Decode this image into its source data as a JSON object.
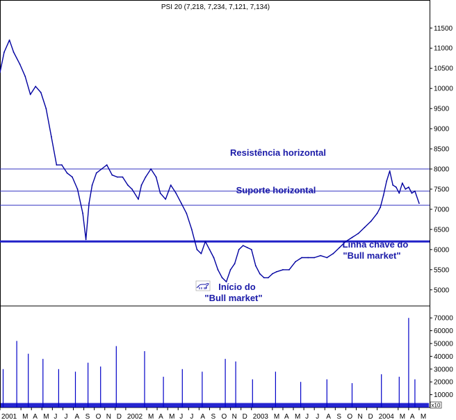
{
  "chart_data": {
    "type": "line",
    "title": "PSI 20 (7,218, 7,234, 7,121, 7,134)",
    "price_axis": {
      "ylim": [
        4600,
        11850
      ],
      "ticks": [
        5000,
        5500,
        6000,
        6500,
        7000,
        7500,
        8000,
        8500,
        9000,
        9500,
        10000,
        10500,
        11000,
        11500
      ]
    },
    "volume_axis": {
      "ylim": [
        0,
        75000
      ],
      "ticks": [
        10000,
        20000,
        30000,
        40000,
        50000,
        60000,
        70000
      ],
      "unit": "x10"
    },
    "x_ticks": [
      {
        "label": "2001",
        "t": 0
      },
      {
        "label": "M",
        "t": 2
      },
      {
        "label": "A",
        "t": 3
      },
      {
        "label": "M",
        "t": 4
      },
      {
        "label": "J",
        "t": 5
      },
      {
        "label": "J",
        "t": 6
      },
      {
        "label": "A",
        "t": 7
      },
      {
        "label": "S",
        "t": 8
      },
      {
        "label": "O",
        "t": 9
      },
      {
        "label": "N",
        "t": 10
      },
      {
        "label": "D",
        "t": 11
      },
      {
        "label": "2002",
        "t": 12
      },
      {
        "label": "M",
        "t": 14
      },
      {
        "label": "A",
        "t": 15
      },
      {
        "label": "M",
        "t": 16
      },
      {
        "label": "J",
        "t": 17
      },
      {
        "label": "J",
        "t": 18
      },
      {
        "label": "A",
        "t": 19
      },
      {
        "label": "S",
        "t": 20
      },
      {
        "label": "O",
        "t": 21
      },
      {
        "label": "N",
        "t": 22
      },
      {
        "label": "D",
        "t": 23
      },
      {
        "label": "2003",
        "t": 24
      },
      {
        "label": "M",
        "t": 26
      },
      {
        "label": "A",
        "t": 27
      },
      {
        "label": "M",
        "t": 28
      },
      {
        "label": "J",
        "t": 29
      },
      {
        "label": "J",
        "t": 30
      },
      {
        "label": "A",
        "t": 31
      },
      {
        "label": "S",
        "t": 32
      },
      {
        "label": "O",
        "t": 33
      },
      {
        "label": "N",
        "t": 34
      },
      {
        "label": "D",
        "t": 35
      },
      {
        "label": "2004",
        "t": 36
      },
      {
        "label": "M",
        "t": 38
      },
      {
        "label": "A",
        "t": 39
      },
      {
        "label": "M",
        "t": 40
      }
    ],
    "price_series": {
      "t": [
        0,
        0.4,
        0.9,
        1.3,
        1.9,
        2.4,
        2.9,
        3.4,
        3.9,
        4.4,
        4.9,
        5.4,
        5.9,
        6.4,
        6.9,
        7.4,
        7.9,
        8.2,
        8.5,
        8.8,
        9.2,
        9.7,
        10.2,
        10.7,
        11.2,
        11.7,
        12.2,
        12.6,
        13.2,
        13.5,
        13.9,
        14.4,
        14.9,
        15.3,
        15.8,
        16.3,
        16.8,
        17.3,
        17.8,
        18.3,
        18.8,
        19.2,
        19.6,
        20.0,
        20.4,
        20.8,
        21.2,
        21.6,
        22.0,
        22.4,
        22.8,
        23.2,
        23.6,
        24.0,
        24.4,
        24.8,
        25.2,
        25.6,
        26.0,
        26.4,
        27.0,
        27.6,
        28.2,
        28.8,
        29.4,
        30.0,
        30.6,
        31.2,
        31.8,
        32.4,
        33.0,
        33.6,
        34.2,
        34.8,
        35.4,
        36.0,
        36.3,
        36.6,
        36.9,
        37.2,
        37.5,
        37.8,
        38.1,
        38.4,
        38.7,
        39.0,
        39.3,
        39.6,
        40.0
      ],
      "values": [
        10400,
        10900,
        11200,
        10900,
        10600,
        10300,
        9850,
        10050,
        9900,
        9500,
        8800,
        8100,
        8100,
        7900,
        7800,
        7500,
        6900,
        6250,
        7150,
        7600,
        7900,
        8000,
        8100,
        7850,
        7800,
        7800,
        7600,
        7500,
        7250,
        7600,
        7800,
        8000,
        7800,
        7400,
        7250,
        7600,
        7400,
        7150,
        6900,
        6500,
        6000,
        5900,
        6200,
        6000,
        5800,
        5500,
        5300,
        5200,
        5500,
        5650,
        6000,
        6100,
        6050,
        6000,
        5600,
        5400,
        5300,
        5300,
        5400,
        5450,
        5500,
        5500,
        5700,
        5800,
        5800,
        5800,
        5850,
        5800,
        5900,
        6050,
        6200,
        6300,
        6400,
        6550,
        6700,
        6900,
        7050,
        7350,
        7700,
        7950,
        7600,
        7550,
        7400,
        7650,
        7500,
        7550,
        7400,
        7450,
        7150
      ]
    },
    "volume_series": {
      "t": [
        0.3,
        1.6,
        2.7,
        4.1,
        5.6,
        7.2,
        8.4,
        9.6,
        11.1,
        13.8,
        15.6,
        17.4,
        19.3,
        21.5,
        22.5,
        24.1,
        26.3,
        28.7,
        31.2,
        33.6,
        36.4,
        38.1,
        39.0,
        39.6
      ],
      "values": [
        30000,
        52000,
        42000,
        38000,
        30000,
        28000,
        35000,
        32000,
        48000,
        44000,
        24000,
        30000,
        28000,
        38000,
        36000,
        22000,
        28000,
        20000,
        22000,
        19000,
        26000,
        24000,
        70000,
        22000
      ]
    },
    "grid": false,
    "legend": "none"
  },
  "annotations": {
    "resistance": "Resistência horizontal",
    "support": "Suporte horizontal",
    "key_line_1": "Linha chave do",
    "key_line_2": "\"Bull market\"",
    "start_1": "Início do",
    "start_2": "\"Bull market\""
  },
  "levels": {
    "resistance": 8000,
    "upper_band": 7450,
    "support": 7100,
    "key_line": 6200
  },
  "colors": {
    "price": "#0000a0",
    "volume": "#0000c8",
    "levels": "#3030c0",
    "key_line": "#2020c8",
    "annotation": "#1a1aa8"
  },
  "icons": {
    "bull": "bull-icon"
  }
}
